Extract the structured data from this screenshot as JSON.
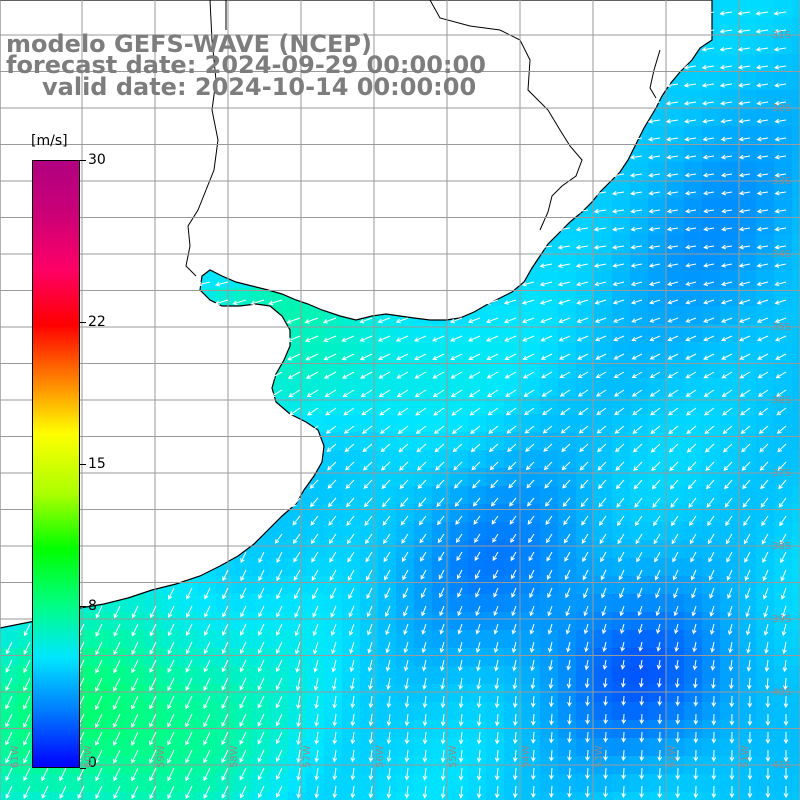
{
  "titles": {
    "model": "modelo GEFS-WAVE (NCEP)",
    "forecast": "forecast date: 2024-09-29 00:00:00",
    "valid": "valid date: 2024-10-14 00:00:00"
  },
  "colorbar": {
    "unit": "[m/s]",
    "min": 0,
    "max": 30,
    "ticks": [
      "30",
      "22",
      "15",
      "8",
      "0"
    ],
    "tick_values": [
      30,
      22,
      15,
      8,
      0
    ],
    "colors": [
      "#0000ff",
      "#0078ff",
      "#00e6ff",
      "#00ff80",
      "#00ff00",
      "#aaff00",
      "#ffff00",
      "#ff8000",
      "#ff0000",
      "#ff0066",
      "#cc0077",
      "#b00080"
    ]
  },
  "map": {
    "land_color": "#ffffff",
    "coast_color": "#000000",
    "grid_color": "#9a9a9a",
    "lon_labels": [
      "61W",
      "60W",
      "59W",
      "58W",
      "57W",
      "56W",
      "55W",
      "54W",
      "53W",
      "52W",
      "51W",
      "50W"
    ],
    "lat_labels": [
      "31S",
      "32S",
      "33S",
      "34S",
      "35S",
      "36S",
      "37S",
      "38S",
      "39S",
      "40S",
      "41S"
    ]
  }
}
